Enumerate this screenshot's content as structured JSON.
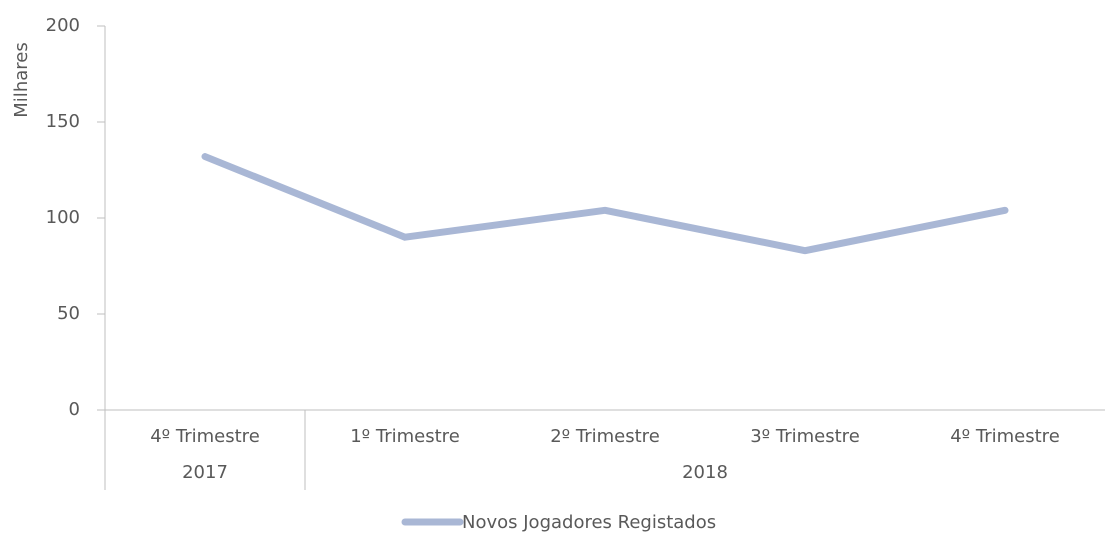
{
  "chart_data": {
    "type": "line",
    "y_label": "Milhares",
    "categories": [
      "4º Trimestre",
      "1º Trimestre",
      "2º Trimestre",
      "3º Trimestre",
      "4º Trimestre"
    ],
    "category_groups": [
      "2017",
      "2018",
      "2018",
      "2018",
      "2018"
    ],
    "series": [
      {
        "name": "Novos Jogadores Registados",
        "color": "#a9b7d5",
        "values": [
          132,
          90,
          104,
          83,
          104
        ]
      }
    ],
    "ylim": [
      0,
      200
    ],
    "yticks": [
      0,
      50,
      100,
      150,
      200
    ],
    "legend": "bottom"
  }
}
